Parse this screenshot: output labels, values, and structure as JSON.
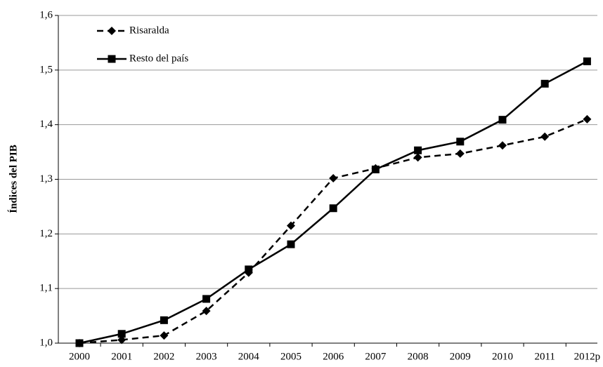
{
  "chart_data": {
    "type": "line",
    "y_label": "Índices del PIB",
    "categories": [
      "2000",
      "2001",
      "2002",
      "2003",
      "2004",
      "2005",
      "2006",
      "2007",
      "2008",
      "2009",
      "2010",
      "2011",
      "2012p"
    ],
    "series": [
      {
        "name": "Risaralda",
        "color": "#000000",
        "dash": true,
        "marker": "diamond",
        "values": [
          1.0,
          1.006,
          1.014,
          1.059,
          1.129,
          1.215,
          1.302,
          1.32,
          1.34,
          1.347,
          1.362,
          1.378,
          1.41
        ]
      },
      {
        "name": "Resto del país",
        "color": "#000000",
        "dash": false,
        "marker": "square",
        "values": [
          1.0,
          1.017,
          1.042,
          1.081,
          1.135,
          1.181,
          1.247,
          1.318,
          1.353,
          1.369,
          1.409,
          1.475,
          1.516
        ]
      }
    ],
    "ylim": [
      1.0,
      1.6
    ],
    "yticks": [
      {
        "value": 1.0,
        "label": "1,0"
      },
      {
        "value": 1.1,
        "label": "1,1"
      },
      {
        "value": 1.2,
        "label": "1,2"
      },
      {
        "value": 1.3,
        "label": "1,3"
      },
      {
        "value": 1.4,
        "label": "1,4"
      },
      {
        "value": 1.5,
        "label": "1,5"
      },
      {
        "value": 1.6,
        "label": "1,6"
      }
    ],
    "grid": true
  }
}
